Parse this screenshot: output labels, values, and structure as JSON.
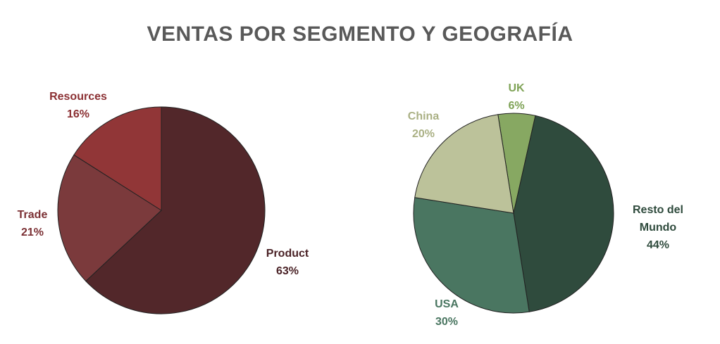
{
  "title": "VENTAS POR SEGMENTO Y GEOGRAFÍA",
  "chart_data": [
    {
      "type": "pie",
      "categories": [
        "Product",
        "Trade",
        "Resources"
      ],
      "values": [
        63,
        21,
        16
      ],
      "value_labels": [
        "63%",
        "21%",
        "16%"
      ],
      "colors": [
        "#52272a",
        "#7b3a3c",
        "#913637"
      ],
      "label_colors": [
        "#4a2226",
        "#7b3034",
        "#8b3033"
      ]
    },
    {
      "type": "pie",
      "categories": [
        "UK",
        "Resto del Mundo",
        "USA",
        "China"
      ],
      "values": [
        6,
        44,
        30,
        20
      ],
      "value_labels": [
        "6%",
        "44%",
        "30%",
        "20%"
      ],
      "colors": [
        "#87a862",
        "#2f4b3d",
        "#4a7661",
        "#bcc29a"
      ],
      "label_colors": [
        "#7fa357",
        "#2f4b3d",
        "#4a7661",
        "#aab084"
      ]
    }
  ]
}
